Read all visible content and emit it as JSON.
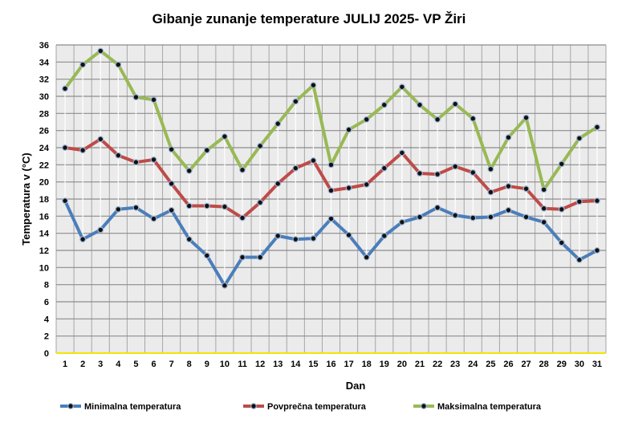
{
  "chart_data": {
    "type": "line",
    "title": "Gibanje zunanje temperature JULIJ 2025- VP Žiri",
    "xlabel": "Dan",
    "ylabel": "Temperatura v (°C)",
    "ylim": [
      0,
      36
    ],
    "ytick_step": 2,
    "grid": true,
    "legend_position": "bottom",
    "x": [
      1,
      2,
      3,
      4,
      5,
      6,
      7,
      8,
      9,
      10,
      11,
      12,
      13,
      14,
      15,
      16,
      17,
      18,
      19,
      20,
      21,
      22,
      23,
      24,
      25,
      26,
      27,
      28,
      29,
      30,
      31
    ],
    "series": [
      {
        "name": "Minimalna temperatura",
        "color": "#4a7ebb",
        "values": [
          17.8,
          13.3,
          14.4,
          16.8,
          17.0,
          15.7,
          16.7,
          13.3,
          11.4,
          7.9,
          11.2,
          11.2,
          13.7,
          13.3,
          13.4,
          15.7,
          13.8,
          11.2,
          13.7,
          15.3,
          15.9,
          17.0,
          16.1,
          15.8,
          15.9,
          16.7,
          15.9,
          15.3,
          12.9,
          10.9,
          12.0
        ]
      },
      {
        "name": "Povprečna temperatura",
        "color": "#be4b48",
        "values": [
          24.0,
          23.7,
          25.0,
          23.1,
          22.3,
          22.6,
          19.8,
          17.2,
          17.2,
          17.1,
          15.8,
          17.6,
          19.8,
          21.6,
          22.5,
          19.0,
          19.3,
          19.7,
          21.6,
          23.4,
          21.0,
          20.9,
          21.8,
          21.1,
          18.8,
          19.5,
          19.2,
          16.9,
          16.8,
          17.7,
          17.8
        ]
      },
      {
        "name": "Maksimalna temperatura",
        "color": "#98b954",
        "values": [
          30.9,
          33.7,
          35.3,
          33.7,
          29.9,
          29.6,
          23.8,
          21.3,
          23.7,
          25.3,
          21.4,
          24.2,
          26.8,
          29.4,
          31.3,
          22.0,
          26.1,
          27.3,
          29.0,
          31.1,
          29.0,
          27.3,
          29.1,
          27.4,
          21.5,
          25.2,
          27.5,
          19.1,
          22.1,
          25.1,
          26.4
        ]
      }
    ]
  }
}
